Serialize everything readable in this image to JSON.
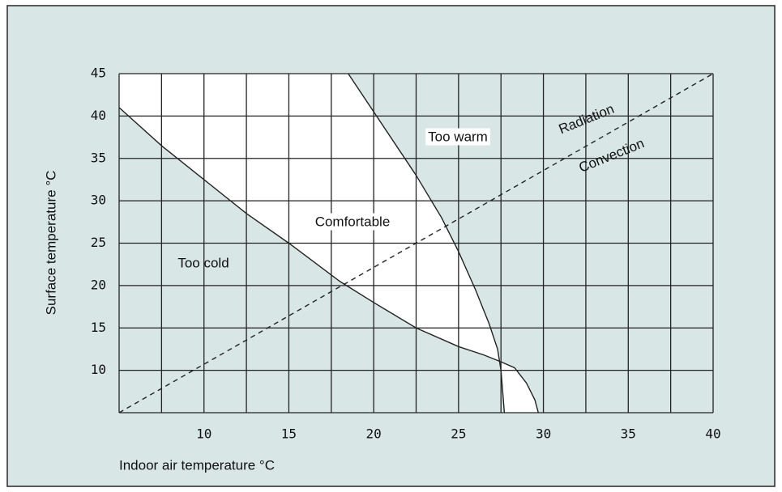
{
  "chart_data": {
    "type": "line",
    "x_label": "Indoor air temperature °C",
    "y_label": "Surface temperature °C",
    "xlim": [
      5,
      40
    ],
    "xticks": [
      10,
      15,
      20,
      25,
      30,
      35,
      40
    ],
    "ylim": [
      5,
      45
    ],
    "yticks": [
      10,
      15,
      20,
      25,
      30,
      35,
      40,
      45
    ],
    "grid": true,
    "background": "#d9e6e6",
    "region_color": "#ffffff",
    "annotations": [
      "Too warm",
      "Comfortable",
      "Too cold",
      "Radiation",
      "Convection"
    ],
    "series": [
      {
        "color": "#222222",
        "dashed": false,
        "x": [
          5,
          7.5,
          10,
          12.5,
          15,
          18,
          20,
          22.5,
          25,
          26.5,
          27.5
        ],
        "values": [
          41,
          36.5,
          32.5,
          28.5,
          25,
          20.5,
          18,
          15,
          12.8,
          11.8,
          11
        ]
      },
      {
        "color": "#222222",
        "dashed": false,
        "x": [
          18.5,
          20,
          22.5,
          24,
          25,
          26,
          26.8,
          27.3,
          27.5,
          27.7
        ],
        "values": [
          45,
          40.5,
          33,
          28,
          24,
          19.5,
          15.5,
          12.5,
          10,
          5
        ]
      },
      {
        "color": "#222222",
        "dashed": false,
        "x": [
          27.5,
          28.3,
          29,
          29.5,
          29.7
        ],
        "values": [
          11,
          10.3,
          8.5,
          6.5,
          5
        ]
      },
      {
        "color": "#222222",
        "dashed": true,
        "x": [
          5,
          40
        ],
        "values": [
          5,
          45
        ]
      }
    ]
  }
}
